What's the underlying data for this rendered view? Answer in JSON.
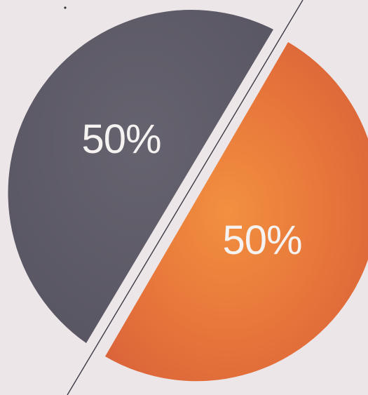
{
  "chart_data": {
    "type": "pie",
    "slices": [
      {
        "label": "50%",
        "value": 50,
        "color": "#5e5b69"
      },
      {
        "label": "50%",
        "value": 50,
        "color": "#e8753b"
      }
    ]
  },
  "colors": {
    "background": "#ece6e8",
    "divider_line": "#3c3a44"
  }
}
